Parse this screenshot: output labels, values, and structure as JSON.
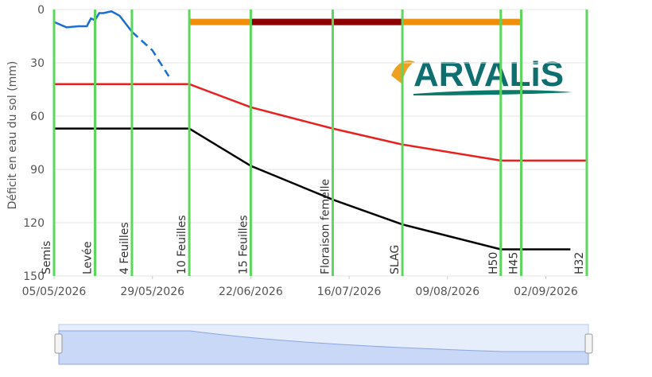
{
  "chart_data": {
    "type": "line",
    "y_label": "Déficit en eau du sol (mm)",
    "ylim": [
      0,
      150
    ],
    "yticks": [
      0,
      30,
      60,
      90,
      120,
      150
    ],
    "y_reversed": true,
    "grid": true,
    "xlim": [
      "05/05/2026",
      "12/09/2026"
    ],
    "xticks": [
      "05/05/2026",
      "29/05/2026",
      "22/06/2026",
      "16/07/2026",
      "09/08/2026",
      "02/09/2026"
    ],
    "logo": "ARVALiS",
    "stages": {
      "color": "#5cd65c",
      "labels": [
        "Semis",
        "Levée",
        "4 Feuilles",
        "10 Feuilles",
        "15 Feuilles",
        "Floraison femelle",
        "SLAG",
        "H50",
        "H45",
        "H32"
      ],
      "x": [
        "05/05/2026",
        "15/05/2026",
        "24/05/2026",
        "07/06/2026",
        "22/06/2026",
        "12/07/2026",
        "29/07/2026",
        "22/08/2026",
        "27/08/2026",
        "12/09/2026"
      ]
    },
    "periods": [
      {
        "start": "07/06/2026",
        "end": "27/08/2026",
        "level": 7,
        "color": "#f0900a"
      },
      {
        "start": "22/06/2026",
        "end": "29/07/2026",
        "level": 7,
        "color": "#8b0000"
      }
    ],
    "series": [
      {
        "color": "#e82020",
        "dash": false,
        "x": [
          "05/05/2026",
          "07/06/2026",
          "22/06/2026",
          "12/07/2026",
          "29/07/2026",
          "22/08/2026",
          "12/09/2026"
        ],
        "values": [
          42,
          42,
          55,
          67,
          76,
          85,
          85
        ]
      },
      {
        "color": "#000000",
        "dash": false,
        "x": [
          "05/05/2026",
          "07/06/2026",
          "22/06/2026",
          "12/07/2026",
          "29/07/2026",
          "22/08/2026",
          "08/09/2026"
        ],
        "values": [
          67,
          67,
          88,
          107,
          121,
          135,
          135
        ]
      },
      {
        "color": "#1a6fd4",
        "dash": false,
        "x": [
          "05/05/2026",
          "08/05/2026",
          "11/05/2026",
          "13/05/2026",
          "14/05/2026",
          "15/05/2026",
          "16/05/2026",
          "17/05/2026",
          "19/05/2026",
          "21/05/2026",
          "24/05/2026"
        ],
        "values": [
          7,
          10,
          9.4,
          9.4,
          5,
          6,
          2,
          2,
          1,
          3.5,
          12.5
        ]
      },
      {
        "color": "#1a6fd4",
        "dash": true,
        "x": [
          "24/05/2026",
          "29/05/2026",
          "02/06/2026"
        ],
        "values": [
          12.5,
          23,
          37.6
        ]
      }
    ]
  }
}
